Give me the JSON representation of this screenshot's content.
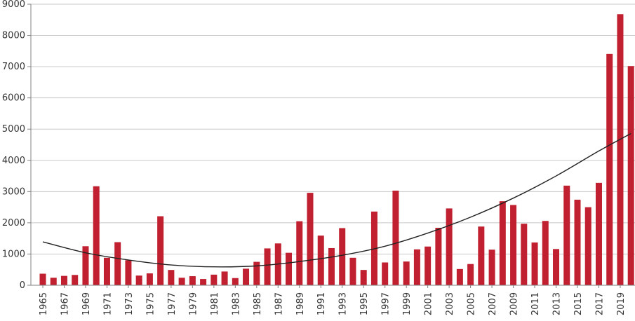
{
  "chart_data": {
    "type": "bar",
    "title": "",
    "xlabel": "",
    "ylabel": "",
    "ylim": [
      0,
      9000
    ],
    "yticks": [
      0,
      1000,
      2000,
      3000,
      4000,
      5000,
      6000,
      7000,
      8000,
      9000
    ],
    "grid": "y",
    "legend": "none",
    "bar_color": "#c0202f",
    "trend_color": "#222222",
    "categories": [
      1965,
      1966,
      1967,
      1968,
      1969,
      1970,
      1971,
      1972,
      1973,
      1974,
      1975,
      1976,
      1977,
      1978,
      1979,
      1980,
      1981,
      1982,
      1983,
      1984,
      1985,
      1986,
      1987,
      1988,
      1989,
      1990,
      1991,
      1992,
      1993,
      1994,
      1995,
      1996,
      1997,
      1998,
      1999,
      2000,
      2001,
      2002,
      2003,
      2004,
      2005,
      2006,
      2007,
      2008,
      2009,
      2010,
      2011,
      2012,
      2013,
      2014,
      2015,
      2016,
      2017,
      2018,
      2019,
      2020
    ],
    "x_tick_labels": [
      1965,
      1967,
      1969,
      1971,
      1973,
      1975,
      1977,
      1979,
      1981,
      1983,
      1985,
      1987,
      1989,
      1991,
      1993,
      1995,
      1997,
      1999,
      2001,
      2003,
      2005,
      2007,
      2009,
      2011,
      2013,
      2015,
      2017,
      2019
    ],
    "values": [
      370,
      240,
      300,
      330,
      1250,
      3170,
      880,
      1380,
      800,
      310,
      380,
      2210,
      490,
      240,
      290,
      200,
      340,
      440,
      230,
      530,
      750,
      1180,
      1340,
      1040,
      2050,
      2960,
      1590,
      1190,
      1830,
      880,
      490,
      2360,
      730,
      3030,
      760,
      1150,
      1240,
      1840,
      2460,
      520,
      680,
      1880,
      1140,
      2690,
      2570,
      1970,
      1370,
      2060,
      1160,
      3190,
      2740,
      2500,
      3280,
      7410,
      8680,
      7020
    ],
    "trend": {
      "type": "polynomial",
      "degree": 2,
      "x": [
        1965,
        1969,
        1973,
        1977,
        1981,
        1985,
        1989,
        1993,
        1997,
        2001,
        2005,
        2009,
        2013,
        2017,
        2020
      ],
      "y": [
        1390,
        1040,
        810,
        650,
        590,
        620,
        760,
        960,
        1250,
        1670,
        2180,
        2790,
        3500,
        4300,
        4860
      ]
    }
  }
}
